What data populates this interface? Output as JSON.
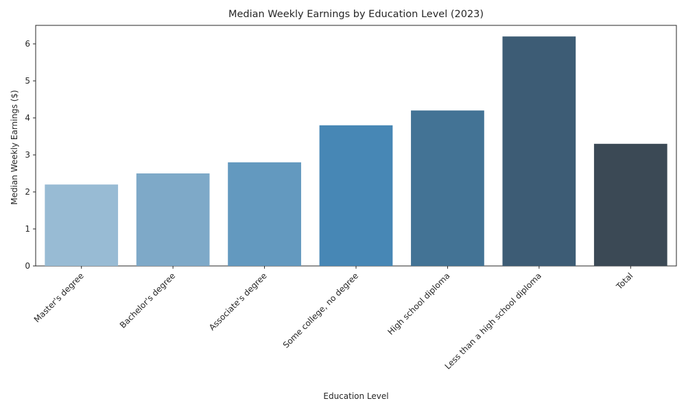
{
  "chart_data": {
    "type": "bar",
    "title": "Median Weekly Earnings by Education Level (2023)",
    "xlabel": "Education Level",
    "ylabel": "Median Weekly Earnings ($)",
    "categories": [
      "Master's degree",
      "Bachelor's degree",
      "Associate's degree",
      "Some college, no degree",
      "High school diploma",
      "Less than a high school diploma",
      "Total"
    ],
    "values": [
      2.2,
      2.5,
      2.8,
      3.8,
      4.2,
      6.2,
      3.3
    ],
    "colors": [
      "#98bbd4",
      "#7ea9c8",
      "#6399bf",
      "#4787b5",
      "#437395",
      "#3d5c75",
      "#3b4955"
    ],
    "ylim": [
      0,
      6.5
    ],
    "yticks": [
      0,
      1,
      2,
      3,
      4,
      5,
      6
    ],
    "grid": false,
    "legend": "none"
  }
}
